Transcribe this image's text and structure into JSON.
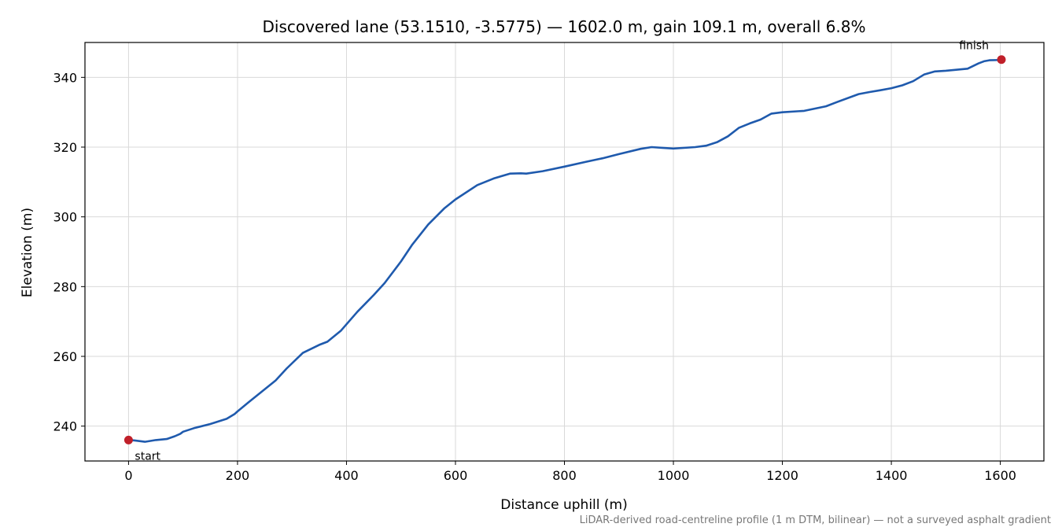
{
  "chart_data": {
    "type": "line",
    "title": "Discovered lane (53.1510, -3.5775) — 1602.0 m, gain 109.1 m, overall 6.8%",
    "xlabel": "Distance uphill (m)",
    "ylabel": "Elevation (m)",
    "xlim": [
      -80,
      1680
    ],
    "ylim": [
      230,
      350
    ],
    "xticks": [
      0,
      200,
      400,
      600,
      800,
      1000,
      1200,
      1400,
      1600
    ],
    "yticks": [
      240,
      260,
      280,
      300,
      320,
      340
    ],
    "grid": true,
    "series": [
      {
        "color": "#1f5aad",
        "x": [
          0,
          10,
          20,
          30,
          50,
          70,
          85,
          95,
          100,
          120,
          150,
          180,
          195,
          200,
          220,
          250,
          270,
          290,
          320,
          350,
          365,
          390,
          420,
          450,
          470,
          500,
          520,
          550,
          580,
          600,
          640,
          670,
          700,
          720,
          730,
          760,
          800,
          840,
          870,
          900,
          940,
          960,
          980,
          1000,
          1040,
          1060,
          1080,
          1100,
          1120,
          1140,
          1160,
          1180,
          1200,
          1240,
          1280,
          1300,
          1340,
          1360,
          1380,
          1400,
          1420,
          1440,
          1460,
          1480,
          1500,
          1540,
          1560,
          1570,
          1580,
          1602
        ],
        "y": [
          236.0,
          235.9,
          235.7,
          235.5,
          236.0,
          236.3,
          237.1,
          237.8,
          238.4,
          239.4,
          240.6,
          242.1,
          243.5,
          244.2,
          246.8,
          250.6,
          253.1,
          256.5,
          261.0,
          263.3,
          264.2,
          267.4,
          272.8,
          277.6,
          281.0,
          287.2,
          291.9,
          297.8,
          302.5,
          305.0,
          309.1,
          311.0,
          312.4,
          312.5,
          312.4,
          313.1,
          314.4,
          315.8,
          316.8,
          318.0,
          319.5,
          320.0,
          319.8,
          319.6,
          320.0,
          320.4,
          321.4,
          323.1,
          325.5,
          326.8,
          327.9,
          329.6,
          330.0,
          330.4,
          331.7,
          332.9,
          335.2,
          335.8,
          336.3,
          336.9,
          337.7,
          338.9,
          340.8,
          341.7,
          341.9,
          342.5,
          344.0,
          344.6,
          344.9,
          345.0
        ]
      }
    ],
    "markers": [
      {
        "x": 0,
        "y": 236.0,
        "label": "start",
        "color": "#c0202a"
      },
      {
        "x": 1602,
        "y": 345.1,
        "label": "finish",
        "color": "#c0202a"
      }
    ],
    "annotations": [
      {
        "text": "LiDAR-derived road-centreline profile (1 m DTM, bilinear) — not a surveyed asphalt gradient",
        "position": "bottom-right"
      }
    ]
  }
}
